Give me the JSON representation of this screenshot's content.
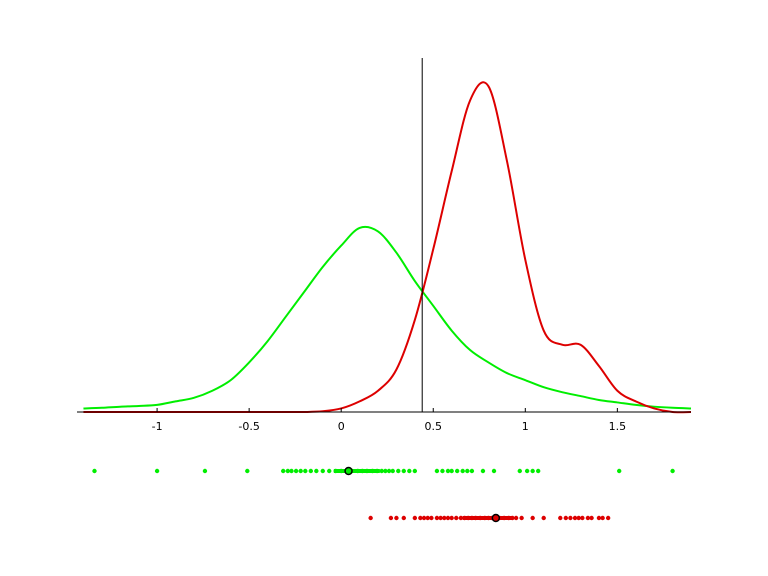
{
  "chart_data": {
    "type": "density",
    "x": [
      -1.4,
      -1.3,
      -1.2,
      -1.1,
      -1.0,
      -0.9,
      -0.8,
      -0.7,
      -0.6,
      -0.5,
      -0.4,
      -0.3,
      -0.2,
      -0.1,
      0,
      0.1,
      0.2,
      0.3,
      0.4,
      0.5,
      0.6,
      0.7,
      0.8,
      0.9,
      1.0,
      1.1,
      1.2,
      1.3,
      1.4,
      1.5,
      1.6,
      1.7,
      1.8,
      1.9
    ],
    "xlim": [
      -1.435,
      1.9
    ],
    "xticks": [
      -1,
      -0.5,
      0,
      0.5,
      1,
      1.5
    ],
    "ylim": [
      0,
      1
    ],
    "vline": 0.44,
    "series": [
      {
        "color": "#00ee00",
        "values": [
          0.01,
          0.012,
          0.015,
          0.017,
          0.02,
          0.03,
          0.04,
          0.06,
          0.09,
          0.14,
          0.2,
          0.27,
          0.34,
          0.41,
          0.47,
          0.52,
          0.51,
          0.45,
          0.37,
          0.3,
          0.23,
          0.175,
          0.14,
          0.11,
          0.09,
          0.07,
          0.056,
          0.045,
          0.034,
          0.027,
          0.02,
          0.015,
          0.012,
          0.01
        ],
        "points": [
          -1.34,
          -1.0,
          -0.74,
          -0.51,
          -0.315,
          -0.29,
          -0.27,
          -0.245,
          -0.22,
          -0.195,
          -0.165,
          -0.135,
          -0.1,
          -0.065,
          -0.03,
          0,
          0.03,
          0.06,
          0.09,
          0.115,
          0.14,
          0.17,
          0.195,
          0.22,
          0.24,
          0.26,
          0.28,
          0.31,
          0.34,
          0.37,
          0.4,
          0.52,
          0.55,
          0.58,
          0.6,
          0.63,
          0.66,
          0.685,
          0.71,
          0.77,
          0.83,
          0.97,
          1.01,
          1.04,
          1.07,
          1.51,
          1.8
        ],
        "mean": 0.04,
        "range": [
          -0.04,
          0.21
        ]
      },
      {
        "color": "#dd0000",
        "values": [
          0,
          0,
          0,
          0,
          0,
          0,
          0,
          0,
          0,
          0,
          0,
          0,
          0,
          0.002,
          0.01,
          0.03,
          0.06,
          0.12,
          0.26,
          0.46,
          0.68,
          0.88,
          0.92,
          0.71,
          0.43,
          0.23,
          0.19,
          0.19,
          0.13,
          0.06,
          0.03,
          0.01,
          0,
          0
        ],
        "points": [
          0.16,
          0.27,
          0.3,
          0.34,
          0.4,
          0.43,
          0.45,
          0.47,
          0.49,
          0.52,
          0.54,
          0.56,
          0.58,
          0.6,
          0.625,
          0.65,
          0.67,
          0.69,
          0.71,
          0.73,
          0.755,
          0.78,
          0.8,
          0.82,
          0.84,
          0.86,
          0.885,
          0.91,
          0.93,
          0.95,
          0.98,
          1.04,
          1.1,
          1.19,
          1.22,
          1.245,
          1.27,
          1.29,
          1.31,
          1.34,
          1.36,
          1.4,
          1.42,
          1.45
        ],
        "mean": 0.84,
        "range": [
          0.66,
          0.935
        ]
      }
    ]
  }
}
